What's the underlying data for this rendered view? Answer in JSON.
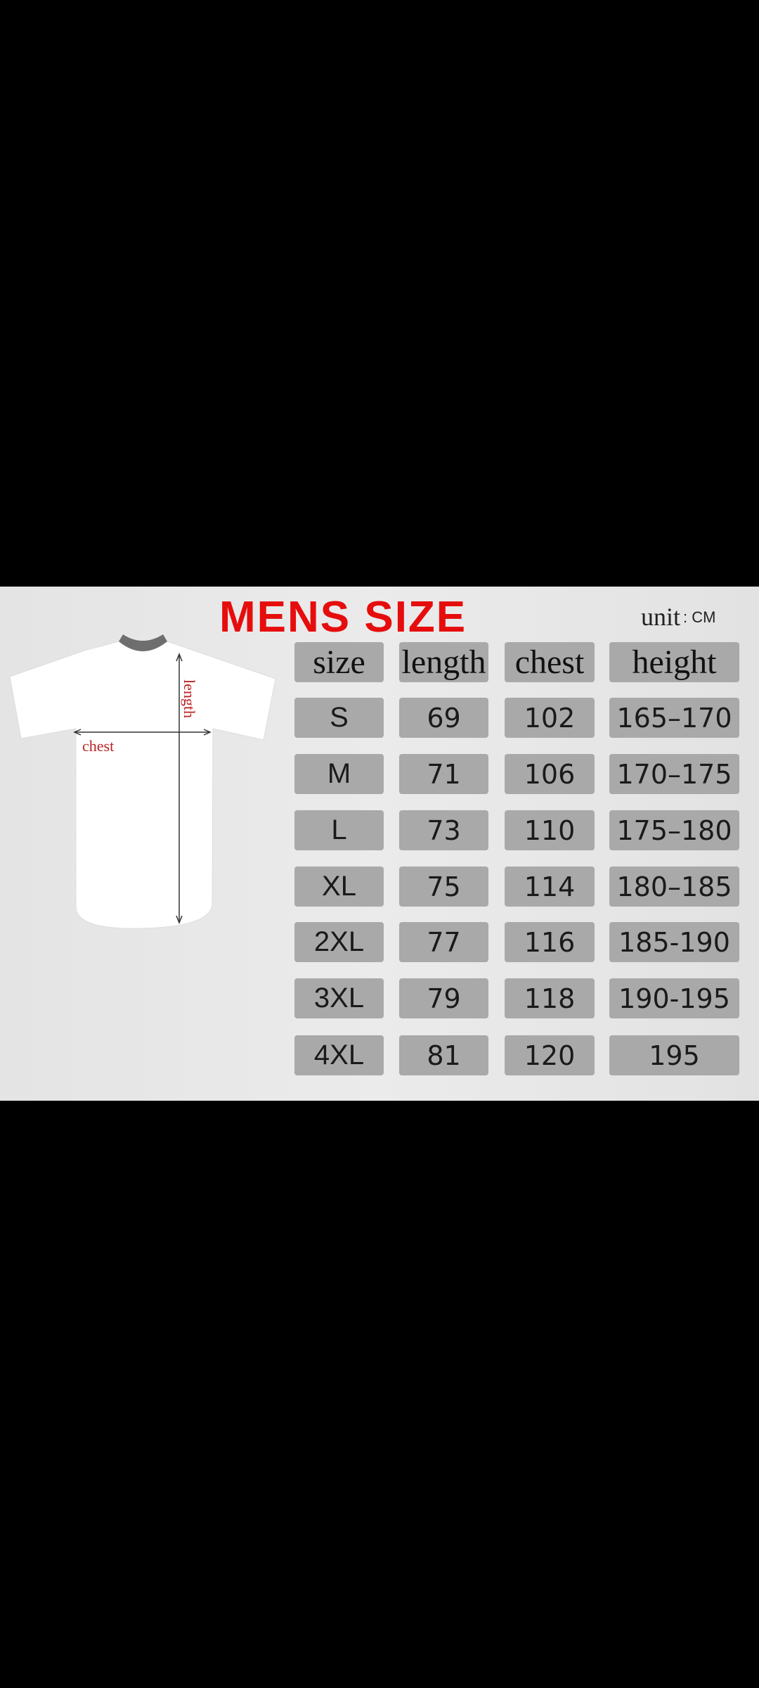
{
  "title": "MENS SIZE",
  "unit_label": "unit",
  "unit_value": ": CM",
  "diagram": {
    "length_label": "length",
    "chest_label": "chest"
  },
  "table": {
    "headers": [
      "size",
      "length",
      "chest",
      "height"
    ],
    "rows": [
      [
        "S",
        "69",
        "102",
        "165–170"
      ],
      [
        "M",
        "71",
        "106",
        "170–175"
      ],
      [
        "L",
        "73",
        "110",
        "175–180"
      ],
      [
        "XL",
        "75",
        "114",
        "180–185"
      ],
      [
        "2XL",
        "77",
        "116",
        "185-190"
      ],
      [
        "3XL",
        "79",
        "118",
        "190-195"
      ],
      [
        "4XL",
        "81",
        "120",
        "195"
      ]
    ]
  },
  "colors": {
    "title": "#e60d0d",
    "cell": "#a9a9a9",
    "background": "#e6e6e6"
  }
}
